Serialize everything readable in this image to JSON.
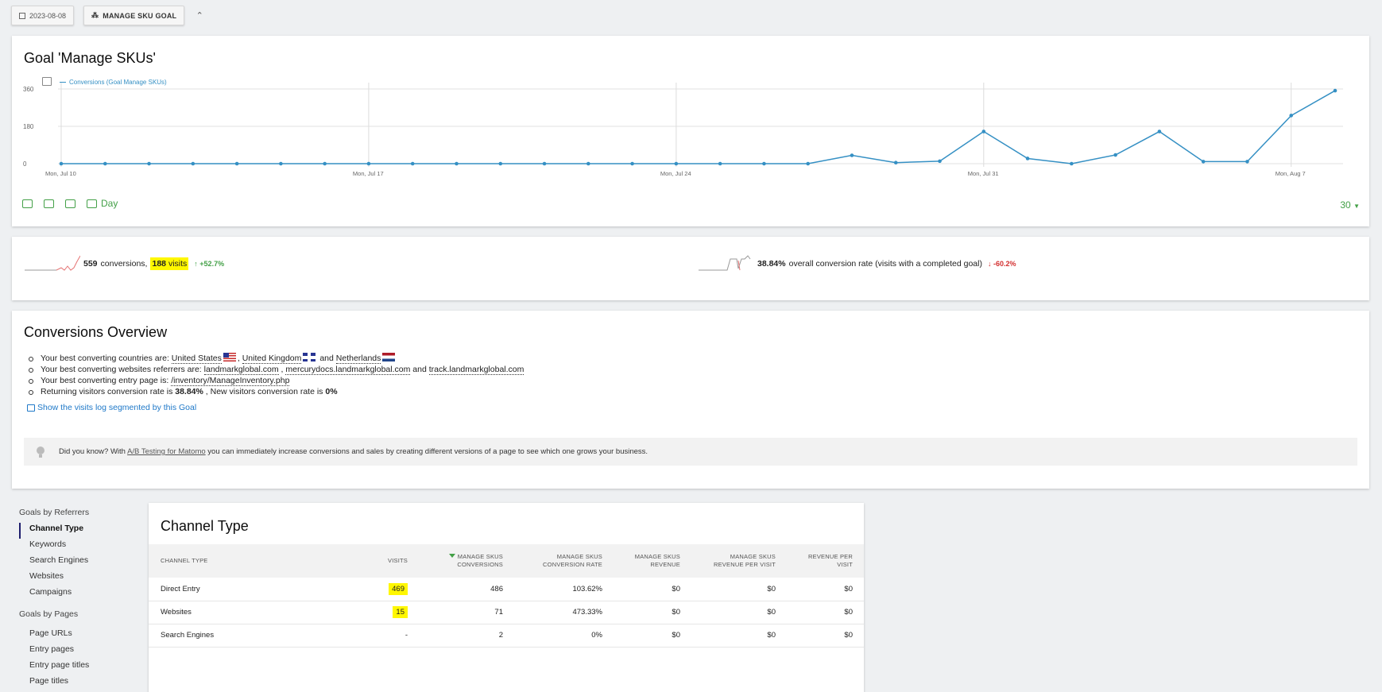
{
  "topbar": {
    "date_label": "2023-08-08",
    "goal_button_label": "MANAGE SKU GOAL",
    "collapse_glyph": "⌃"
  },
  "evolution": {
    "title": "Goal 'Manage SKUs'",
    "legend": "Conversions (Goal Manage SKUs)",
    "series_color": "#3590c4",
    "day_label": "Day",
    "period_label": "30",
    "chart_data": {
      "type": "line",
      "y_ticks": [
        "360",
        "180",
        "0"
      ],
      "x_tick_labels": [
        "Mon, Jul 10",
        "Mon, Jul 17",
        "Mon, Jul 24",
        "Mon, Jul 31",
        "Mon, Aug 7"
      ],
      "ylim": [
        0,
        360
      ],
      "values": [
        0,
        0,
        0,
        0,
        0,
        0,
        0,
        0,
        0,
        0,
        0,
        0,
        0,
        0,
        0,
        0,
        0,
        0,
        40,
        5,
        12,
        155,
        25,
        0,
        42,
        155,
        10,
        10,
        232,
        352
      ]
    }
  },
  "sparklines": {
    "left": {
      "count": "559",
      "conversions_text": "conversions,",
      "visits_count": "188",
      "visits_text": "visits",
      "change": "+52.7%"
    },
    "right": {
      "rate": "38.84%",
      "rate_text": "overall conversion rate (visits with a completed goal)",
      "change": "-60.2%"
    }
  },
  "overview": {
    "title": "Conversions Overview",
    "line1_prefix": "Your best converting countries are:",
    "country1": "United States",
    "sep1": ",",
    "country2": "United Kingdom",
    "and1": "and",
    "country3": "Netherlands",
    "line2_prefix": "Your best converting websites referrers are:",
    "ref1": "landmarkglobal.com",
    "sep2": ",",
    "ref2": "mercurydocs.landmarkglobal.com",
    "and2": "and",
    "ref3": "track.landmarkglobal.com",
    "line3_prefix": "Your best converting entry page is:",
    "entry_page": "/inventory/ManageInventory.php",
    "line4_a": "Returning visitors conversion rate is",
    "returning_rate": "38.84%",
    "line4_b": ", New visitors conversion rate is",
    "new_rate": "0%",
    "segment_link": "Show the visits log segmented by this Goal",
    "tip_prefix": "Did you know? With",
    "tip_link": "A/B Testing for Matomo",
    "tip_suffix": "you can immediately increase conversions and sales by creating different versions of a page to see which one grows your business."
  },
  "sidenav": {
    "group1": "Goals by Referrers",
    "items1": [
      "Channel Type",
      "Keywords",
      "Search Engines",
      "Websites",
      "Campaigns"
    ],
    "group2": "Goals by Pages",
    "items2": [
      "Page URLs",
      "Entry pages",
      "Entry page titles",
      "Page titles"
    ]
  },
  "channel": {
    "title": "Channel Type",
    "headers": [
      "CHANNEL TYPE",
      "VISITS",
      "MANAGE SKUS CONVERSIONS",
      "MANAGE SKUS CONVERSION RATE",
      "MANAGE SKUS REVENUE",
      "MANAGE SKUS REVENUE PER VISIT",
      "REVENUE PER VISIT"
    ],
    "header_lines": [
      [
        "CHANNEL TYPE"
      ],
      [
        "VISITS"
      ],
      [
        "MANAGE SKUS",
        "CONVERSIONS"
      ],
      [
        "MANAGE SKUS",
        "CONVERSION RATE"
      ],
      [
        "MANAGE SKUS",
        "REVENUE"
      ],
      [
        "MANAGE SKUS",
        "REVENUE PER VISIT"
      ],
      [
        "REVENUE PER",
        "VISIT"
      ]
    ],
    "rows": [
      [
        "Direct Entry",
        "469",
        "486",
        "103.62%",
        "$0",
        "$0",
        "$0"
      ],
      [
        "Websites",
        "15",
        "71",
        "473.33%",
        "$0",
        "$0",
        "$0"
      ],
      [
        "Search Engines",
        "-",
        "2",
        "0%",
        "$0",
        "$0",
        "$0"
      ]
    ]
  }
}
